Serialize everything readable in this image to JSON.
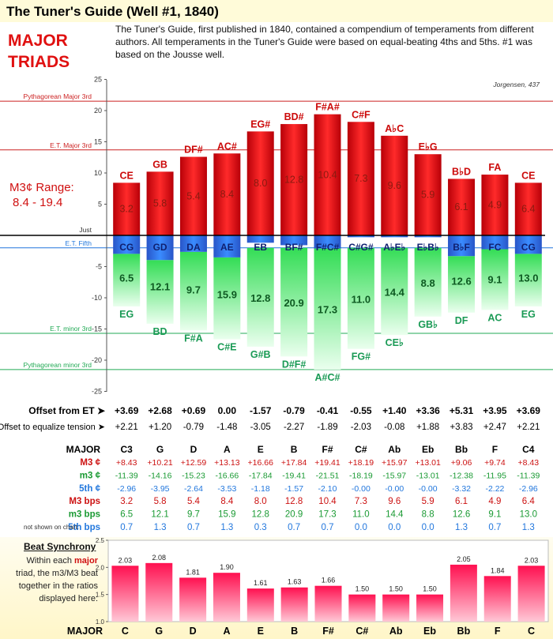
{
  "header": {
    "title": "The Tuner's Guide (Well #1, 1840)",
    "section_label": "MAJOR TRIADS",
    "intro": "The Tuner's Guide, first published in 1840, contained a compendium of temperaments from different authors. All temperaments in the Tuner's Guide were based on equal-beating 4ths and 5ths. #1 was based on the Jousse well."
  },
  "colors": {
    "major": "#dd0c10",
    "minor": "#22bb44",
    "fifth": "#2850c8",
    "title_bg": "#fffbd9"
  },
  "chart_data": [
    {
      "type": "bar",
      "credit": "Jorgensen, 437",
      "range_label": [
        "M3¢ Range:",
        "8.4 - 19.4"
      ],
      "ylim": [
        -25,
        25
      ],
      "yticks": [
        "25",
        "20",
        "15",
        "10",
        "5",
        "",
        "-5",
        "-10",
        "-15",
        "-20",
        "-25"
      ],
      "just_label": "Just",
      "reference_lines": [
        {
          "label": "Pythagorean Major 3rd",
          "value": 21.5,
          "color": "#cc2222"
        },
        {
          "label": "E.T. Major 3rd",
          "value": 13.7,
          "color": "#cc2222"
        },
        {
          "label": "E.T. Fifth",
          "value": -2.0,
          "color": "#2277dd"
        },
        {
          "label": "E.T. minor 3rd",
          "value": -15.7,
          "color": "#22aa55"
        },
        {
          "label": "Pythagorean minor 3rd",
          "value": -21.5,
          "color": "#22aa55"
        }
      ],
      "categories": [
        "C3",
        "G",
        "D",
        "A",
        "E",
        "B",
        "F#",
        "C#",
        "Ab",
        "Eb",
        "Bb",
        "F",
        "C4"
      ],
      "major_labels": [
        "CE",
        "GB",
        "DF#",
        "AC#",
        "EG#",
        "BD#",
        "F#A#",
        "C#F",
        "A♭C",
        "E♭G",
        "B♭D",
        "FA",
        "CE"
      ],
      "minor_labels": [
        "EG",
        "BD",
        "F#A",
        "C#E",
        "G#B",
        "D#F#",
        "A#C#",
        "FG#",
        "CE♭",
        "GB♭",
        "DF",
        "AC",
        "EG"
      ],
      "fifth_labels": [
        "CG",
        "GD",
        "DA",
        "AE",
        "EB",
        "BF#",
        "F#C#",
        "C#G#",
        "A♭E♭",
        "E♭B♭",
        "B♭F",
        "FC",
        "CG"
      ],
      "series": [
        {
          "name": "M3 ¢",
          "values": [
            8.43,
            10.21,
            12.59,
            13.13,
            16.66,
            17.84,
            19.41,
            18.19,
            15.97,
            13.01,
            9.06,
            9.74,
            8.43
          ]
        },
        {
          "name": "m3 ¢",
          "values": [
            -11.39,
            -14.16,
            -15.23,
            -16.66,
            -17.84,
            -19.41,
            -21.51,
            -18.19,
            -15.97,
            -13.01,
            -12.38,
            -11.95,
            -11.39
          ]
        },
        {
          "name": "5th ¢",
          "values": [
            -2.96,
            -3.95,
            -2.64,
            -3.53,
            -1.18,
            -1.57,
            -2.1,
            -0.0,
            -0.0,
            -0.0,
            -3.32,
            -2.22,
            -2.96
          ]
        }
      ],
      "m3_bps_display": [
        "3.2",
        "5.8",
        "5.4",
        "8.4",
        "8.0",
        "12.8",
        "10.4",
        "7.3",
        "9.6",
        "5.9",
        "6.1",
        "4.9",
        "6.4"
      ],
      "min_bps_display": [
        "6.5",
        "12.1",
        "9.7",
        "15.9",
        "12.8",
        "20.9",
        "17.3",
        "11.0",
        "14.4",
        "8.8",
        "12.6",
        "9.1",
        "13.0"
      ]
    },
    {
      "type": "table",
      "offset_label": "Offset from ET ➤",
      "offset_values": [
        "+3.69",
        "+2.68",
        "+0.69",
        "0.00",
        "-1.57",
        "-0.79",
        "-0.41",
        "-0.55",
        "+1.40",
        "+3.36",
        "+5.31",
        "+3.95",
        "+3.69"
      ],
      "tension_label": "Offset to equalize tension ➤",
      "tension_values": [
        "+2.21",
        "+1.20",
        "-0.79",
        "-1.48",
        "-3.05",
        "-2.27",
        "-1.89",
        "-2.03",
        "-0.08",
        "+1.88",
        "+3.83",
        "+2.47",
        "+2.21"
      ],
      "header_label": "MAJOR",
      "columns": [
        "C3",
        "G",
        "D",
        "A",
        "E",
        "B",
        "F#",
        "C#",
        "Ab",
        "Eb",
        "Bb",
        "F",
        "C4"
      ],
      "note_label": "not shown on chart:",
      "rows": [
        {
          "label": "M3 ¢",
          "color": "#cc1111",
          "values": [
            "+8.43",
            "+10.21",
            "+12.59",
            "+13.13",
            "+16.66",
            "+17.84",
            "+19.41",
            "+18.19",
            "+15.97",
            "+13.01",
            "+9.06",
            "+9.74",
            "+8.43"
          ]
        },
        {
          "label": "m3 ¢",
          "color": "#1a9a33",
          "values": [
            "-11.39",
            "-14.16",
            "-15.23",
            "-16.66",
            "-17.84",
            "-19.41",
            "-21.51",
            "-18.19",
            "-15.97",
            "-13.01",
            "-12.38",
            "-11.95",
            "-11.39"
          ]
        },
        {
          "label": "5th ¢",
          "color": "#2277dd",
          "values": [
            "-2.96",
            "-3.95",
            "-2.64",
            "-3.53",
            "-1.18",
            "-1.57",
            "-2.10",
            "-0.00",
            "-0.00",
            "-0.00",
            "-3.32",
            "-2.22",
            "-2.96"
          ]
        },
        {
          "label": "M3 bps",
          "color": "#cc1111",
          "values": [
            "3.2",
            "5.8",
            "5.4",
            "8.4",
            "8.0",
            "12.8",
            "10.4",
            "7.3",
            "9.6",
            "5.9",
            "6.1",
            "4.9",
            "6.4"
          ]
        },
        {
          "label": "m3 bps",
          "color": "#1a9a33",
          "values": [
            "6.5",
            "12.1",
            "9.7",
            "15.9",
            "12.8",
            "20.9",
            "17.3",
            "11.0",
            "14.4",
            "8.8",
            "12.6",
            "9.1",
            "13.0"
          ]
        },
        {
          "label": "5th bps",
          "color": "#2277dd",
          "values": [
            "0.7",
            "1.3",
            "0.7",
            "1.3",
            "0.3",
            "0.7",
            "0.7",
            "0.0",
            "0.0",
            "0.0",
            "1.3",
            "0.7",
            "1.3"
          ]
        }
      ]
    },
    {
      "type": "bar",
      "title": "Beat Synchrony",
      "description_parts": [
        "Within each ",
        "major",
        " triad, the m3/M3 beat together in the ratios displayed here:"
      ],
      "ylim": [
        1.0,
        2.5
      ],
      "yticks": [
        "2.5",
        "2.0",
        "1.5",
        "1.0"
      ],
      "categories": [
        "C",
        "G",
        "D",
        "A",
        "E",
        "B",
        "F#",
        "C#",
        "Ab",
        "Eb",
        "Bb",
        "F",
        "C"
      ],
      "values": [
        2.03,
        2.08,
        1.81,
        1.9,
        1.61,
        1.63,
        1.66,
        1.5,
        1.5,
        1.5,
        2.05,
        1.84,
        2.03
      ],
      "axis_label": "MAJOR"
    }
  ]
}
